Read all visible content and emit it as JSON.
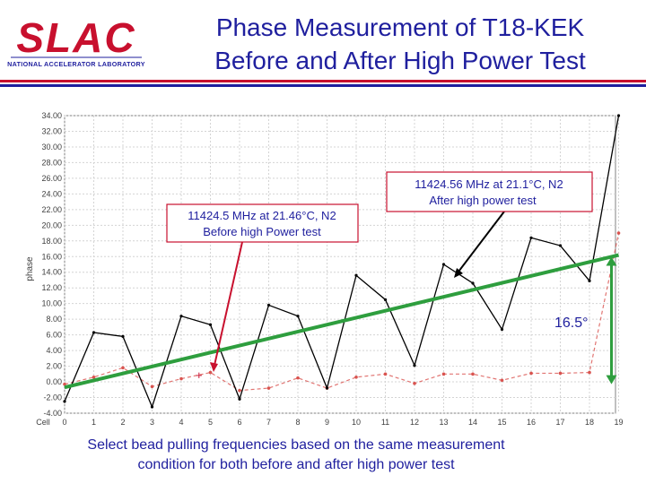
{
  "header": {
    "logo_text": "SLAC",
    "logo_subtext": "NATIONAL ACCELERATOR LABORATORY",
    "title_line1": "Phase Measurement of T18-KEK",
    "title_line2": "Before and After High Power Test"
  },
  "colors": {
    "title": "#1f1f9e",
    "logo_red": "#c8102e",
    "rule_red": "#c8102e",
    "rule_blue": "#1f1f9e",
    "after_series": "#000000",
    "before_series": "#d9534f",
    "trend_line": "#2e9e3e",
    "annotation_pointer": "#c8102e"
  },
  "annotations": {
    "before_box_line1": "11424.5 MHz at 21.46°C, N2",
    "before_box_line2": "Before high Power test",
    "after_box_line1": "11424.56 MHz at 21.1°C, N2",
    "after_box_line2": "After high power test",
    "delta_label": "16.5°"
  },
  "caption": {
    "line1": "Select bead pulling frequencies based on the same measurement",
    "line2": "condition for both before and after high power test"
  },
  "chart_data": {
    "type": "line",
    "ylabel": "phase",
    "ylim": [
      -4,
      34
    ],
    "yticks": [
      "-4.00",
      "-2.00",
      "0.00",
      "2.00",
      "4.00",
      "6.00",
      "8.00",
      "10.00",
      "12.00",
      "14.00",
      "16.00",
      "18.00",
      "20.00",
      "22.00",
      "24.00",
      "26.00",
      "28.00",
      "30.00",
      "32.00",
      "34.00"
    ],
    "xticks": [
      "Cell",
      "0",
      "1",
      "2",
      "3",
      "4",
      "5",
      "6",
      "7",
      "8",
      "9",
      "10",
      "11",
      "12",
      "13",
      "14",
      "15",
      "16",
      "17",
      "18",
      "19"
    ],
    "x": [
      0,
      1,
      2,
      3,
      4,
      5,
      6,
      7,
      8,
      9,
      10,
      11,
      12,
      13,
      14,
      15,
      16,
      17,
      18,
      19
    ],
    "grid": true,
    "series": [
      {
        "values": [
          -2.5,
          6.3,
          5.8,
          -3.2,
          8.4,
          7.3,
          -2.2,
          9.8,
          8.4,
          -0.8,
          13.6,
          10.5,
          2.1,
          15.0,
          12.6,
          6.7,
          18.4,
          17.4,
          12.9,
          34.0
        ]
      },
      {
        "values": [
          -0.3,
          0.6,
          1.8,
          -0.6,
          0.4,
          1.2,
          -1.1,
          -0.8,
          0.5,
          -0.8,
          0.6,
          1.0,
          -0.2,
          1.0,
          1.0,
          0.2,
          1.1,
          1.1,
          1.2,
          19.0
        ]
      }
    ],
    "trend_line": {
      "x": [
        0,
        19
      ],
      "y": [
        -0.7,
        16.2
      ]
    }
  }
}
